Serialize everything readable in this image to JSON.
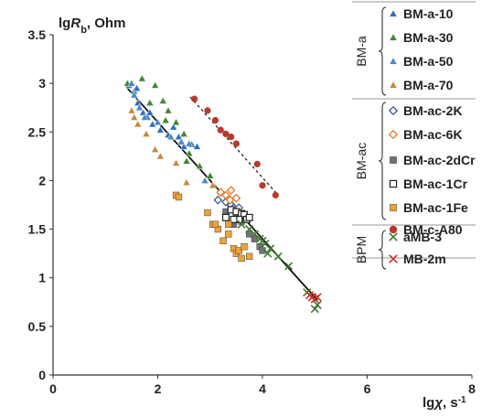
{
  "chart_data": {
    "type": "scatter",
    "xlim": [
      0,
      8
    ],
    "ylim": [
      0,
      3.5
    ],
    "x_ticks": [
      0,
      2,
      4,
      6,
      8
    ],
    "y_ticks": [
      0,
      0.5,
      1,
      1.5,
      2,
      2.5,
      3,
      3.5
    ],
    "ylabel": {
      "base": "lg",
      "var": "R",
      "sub": "b",
      "unit": ", Ohm"
    },
    "xlabel": {
      "base": "lg",
      "var": "χ",
      "unit": ", s",
      "sup": "-1"
    },
    "grid": false,
    "legend_position": "right",
    "legend_groups": [
      {
        "name": "BM-a",
        "entries": [
          "BM-a-10",
          "BM-a-30",
          "BM-a-50",
          "BM-a-70"
        ]
      },
      {
        "name": "BM-ac",
        "entries": [
          "BM-ac-2K",
          "BM-ac-6K",
          "BM-ac-2dCr",
          "BM-ac-1Cr",
          "BM-ac-1Fe",
          "BM-c-A80"
        ]
      },
      {
        "name": "BPM",
        "entries": [
          "aMB-3",
          "MB-2m"
        ]
      }
    ],
    "series": [
      {
        "name": "BM-a-10",
        "marker": "triangle",
        "color": "#2e6fc0",
        "points": [
          [
            1.45,
            2.98
          ],
          [
            1.55,
            2.92
          ],
          [
            1.62,
            2.8
          ],
          [
            1.72,
            2.7
          ],
          [
            1.8,
            2.65
          ],
          [
            1.9,
            2.58
          ],
          [
            2.05,
            2.52
          ],
          [
            2.2,
            2.47
          ],
          [
            2.4,
            2.45
          ],
          [
            2.5,
            2.35
          ],
          [
            2.65,
            2.37
          ],
          [
            2.75,
            2.35
          ],
          [
            1.6,
            2.95
          ],
          [
            1.85,
            2.7
          ],
          [
            2.3,
            2.55
          ]
        ]
      },
      {
        "name": "BM-a-30",
        "marker": "triangle",
        "color": "#3d8a2e",
        "points": [
          [
            1.42,
            3.0
          ],
          [
            1.7,
            3.05
          ],
          [
            1.95,
            2.98
          ],
          [
            2.1,
            2.82
          ],
          [
            2.2,
            2.72
          ],
          [
            2.35,
            2.6
          ],
          [
            2.5,
            2.48
          ],
          [
            2.6,
            2.28
          ],
          [
            2.8,
            2.15
          ],
          [
            3.0,
            2.05
          ],
          [
            1.85,
            2.8
          ],
          [
            2.15,
            2.62
          ],
          [
            2.55,
            2.2
          ]
        ]
      },
      {
        "name": "BM-a-50",
        "marker": "triangle",
        "color": "#4f86c9",
        "points": [
          [
            1.5,
            3.0
          ],
          [
            1.65,
            2.75
          ],
          [
            1.75,
            2.65
          ],
          [
            2.0,
            2.6
          ],
          [
            2.25,
            2.45
          ],
          [
            2.45,
            2.4
          ],
          [
            2.6,
            2.38
          ],
          [
            2.9,
            2.0
          ],
          [
            1.55,
            2.88
          ]
        ]
      },
      {
        "name": "BM-a-70",
        "marker": "triangle",
        "color": "#c68a3a",
        "points": [
          [
            1.5,
            2.72
          ],
          [
            1.62,
            2.58
          ],
          [
            1.78,
            2.48
          ],
          [
            1.95,
            2.32
          ],
          [
            2.05,
            2.25
          ],
          [
            2.35,
            2.18
          ],
          [
            2.55,
            1.98
          ],
          [
            3.05,
            1.95
          ],
          [
            3.2,
            1.88
          ],
          [
            1.55,
            2.65
          ]
        ]
      },
      {
        "name": "BM-ac-2K",
        "marker": "diamond",
        "color": "#3d5a8a",
        "points": [
          [
            3.15,
            1.8
          ],
          [
            3.3,
            1.78
          ],
          [
            3.4,
            1.75
          ],
          [
            3.45,
            1.72
          ],
          [
            3.55,
            1.72
          ]
        ]
      },
      {
        "name": "BM-ac-6K",
        "marker": "diamond",
        "color": "#e07a2a",
        "points": [
          [
            3.2,
            1.88
          ],
          [
            3.3,
            1.85
          ],
          [
            3.4,
            1.9
          ],
          [
            3.38,
            1.8
          ],
          [
            3.5,
            1.82
          ]
        ]
      },
      {
        "name": "BM-ac-2dCr",
        "marker": "square",
        "color": "#707070",
        "points": [
          [
            3.3,
            1.68
          ],
          [
            3.45,
            1.55
          ],
          [
            3.6,
            1.58
          ],
          [
            3.75,
            1.45
          ],
          [
            3.95,
            1.32
          ],
          [
            4.0,
            1.28
          ],
          [
            3.5,
            1.62
          ],
          [
            3.85,
            1.4
          ]
        ]
      },
      {
        "name": "BM-ac-1Cr",
        "marker": "square-open",
        "color": "#222222",
        "points": [
          [
            3.4,
            1.7
          ],
          [
            3.5,
            1.68
          ],
          [
            3.6,
            1.66
          ],
          [
            3.65,
            1.65
          ],
          [
            3.7,
            1.6
          ],
          [
            3.75,
            1.62
          ],
          [
            3.55,
            1.6
          ],
          [
            3.3,
            1.62
          ],
          [
            3.45,
            1.6
          ]
        ]
      },
      {
        "name": "BM-ac-1Fe",
        "marker": "square",
        "color": "#f2a22e",
        "points": [
          [
            2.35,
            1.85
          ],
          [
            2.4,
            1.83
          ],
          [
            2.95,
            1.67
          ],
          [
            3.05,
            1.55
          ],
          [
            3.15,
            1.5
          ],
          [
            3.25,
            1.38
          ],
          [
            3.35,
            1.45
          ],
          [
            3.45,
            1.3
          ],
          [
            3.5,
            1.25
          ],
          [
            3.55,
            1.28
          ],
          [
            3.6,
            1.2
          ],
          [
            3.65,
            1.32
          ],
          [
            3.75,
            1.22
          ],
          [
            3.35,
            1.55
          ],
          [
            3.1,
            1.55
          ]
        ]
      },
      {
        "name": "BM-c-A80",
        "marker": "circle",
        "color": "#b83a2a",
        "points": [
          [
            2.7,
            2.84
          ],
          [
            2.95,
            2.72
          ],
          [
            3.1,
            2.62
          ],
          [
            3.2,
            2.52
          ],
          [
            3.3,
            2.48
          ],
          [
            3.5,
            2.38
          ],
          [
            3.9,
            2.17
          ],
          [
            4.0,
            1.95
          ],
          [
            4.25,
            1.85
          ],
          [
            3.4,
            2.45
          ]
        ]
      },
      {
        "name": "aMB-3",
        "marker": "x",
        "color": "#3d7a2e",
        "points": [
          [
            3.6,
            1.55
          ],
          [
            3.75,
            1.5
          ],
          [
            3.85,
            1.45
          ],
          [
            3.95,
            1.4
          ],
          [
            4.05,
            1.35
          ],
          [
            4.15,
            1.3
          ],
          [
            4.3,
            1.22
          ],
          [
            4.5,
            1.12
          ],
          [
            4.0,
            1.38
          ],
          [
            4.1,
            1.25
          ],
          [
            4.85,
            0.85
          ],
          [
            4.95,
            0.8
          ],
          [
            5.0,
            0.68
          ],
          [
            5.05,
            0.72
          ]
        ]
      },
      {
        "name": "MB-2m",
        "marker": "x",
        "color": "#c8302a",
        "points": [
          [
            4.9,
            0.82
          ],
          [
            4.95,
            0.8
          ],
          [
            5.0,
            0.78
          ],
          [
            5.05,
            0.8
          ]
        ]
      }
    ],
    "trend_lines": [
      {
        "style": "solid",
        "color": "#111111",
        "from": [
          1.42,
          2.95
        ],
        "to": [
          5.05,
          0.77
        ]
      },
      {
        "style": "dashed",
        "color": "#222222",
        "from": [
          2.62,
          2.86
        ],
        "to": [
          4.3,
          1.85
        ]
      }
    ]
  }
}
